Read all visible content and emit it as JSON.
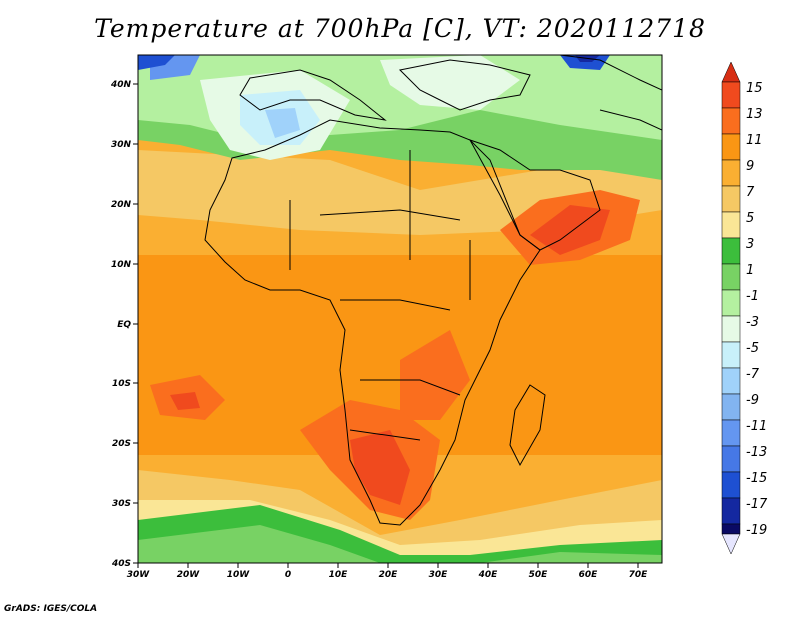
{
  "title": "Temperature at 700hPa [C], VT: 2020112718",
  "credit": "GrADS: IGES/COLA",
  "map": {
    "lon_labels": [
      "30W",
      "20W",
      "10W",
      "0",
      "10E",
      "20E",
      "30E",
      "40E",
      "50E",
      "60E",
      "70E"
    ],
    "lat_labels": [
      "40N",
      "30N",
      "20N",
      "10N",
      "EQ",
      "10S",
      "20S",
      "30S",
      "40S"
    ],
    "lon_range": [
      -30,
      75
    ],
    "lat_range": [
      -40,
      44
    ]
  },
  "colorbar": {
    "labels": [
      "15",
      "13",
      "11",
      "9",
      "7",
      "5",
      "3",
      "1",
      "-1",
      "-3",
      "-5",
      "-7",
      "-9",
      "-11",
      "-13",
      "-15",
      "-17",
      "-19"
    ],
    "colors": {
      "over": "#d72e14",
      "c13_15": "#f04a1e",
      "c11_13": "#fa6e1e",
      "c9_11": "#fa9614",
      "c7_9": "#faaf32",
      "c5_7": "#f5c864",
      "c3_5": "#fae696",
      "c1_3": "#3cbe3c",
      "cm1_1": "#78d264",
      "cm3_m1": "#b4f0a0",
      "cm5_m3": "#e6fae6",
      "cm7_m5": "#c8f0fa",
      "cm9_m7": "#a0d2fa",
      "cm11_m9": "#82b4f0",
      "cm13_m11": "#6496f0",
      "cm15_m13": "#4678e6",
      "cm17_m15": "#1e50d2",
      "cm19_m17": "#1428a0",
      "under": "#0a0a64"
    }
  }
}
